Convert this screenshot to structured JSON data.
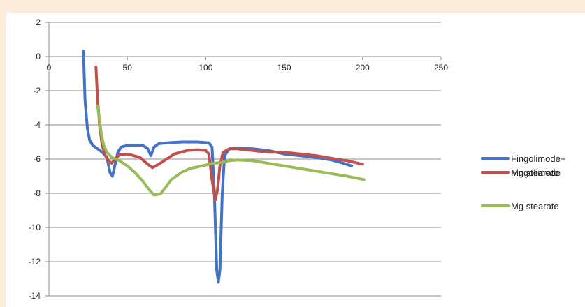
{
  "chart_data": {
    "type": "line",
    "title": "",
    "xlabel": "",
    "ylabel": "",
    "xlim": [
      0,
      250
    ],
    "ylim": [
      -14,
      2
    ],
    "x_ticks": [
      "0",
      "50",
      "100",
      "150",
      "200",
      "250"
    ],
    "y_ticks": [
      "2",
      "0",
      "-2",
      "-4",
      "-6",
      "-8",
      "-10",
      "-12",
      "-14"
    ],
    "grid": "horizontal",
    "legend_position": "right",
    "series": [
      {
        "name_lines": [
          "Fingolimode+",
          "Mg stearate"
        ],
        "color": "#4472c4",
        "points": [
          [
            22,
            0.3
          ],
          [
            23,
            -2.5
          ],
          [
            24.5,
            -4.2
          ],
          [
            26,
            -4.9
          ],
          [
            28,
            -5.2
          ],
          [
            31,
            -5.4
          ],
          [
            34,
            -5.6
          ],
          [
            37,
            -5.9
          ],
          [
            39,
            -6.8
          ],
          [
            40.5,
            -7.0
          ],
          [
            42,
            -6.4
          ],
          [
            44,
            -5.6
          ],
          [
            46,
            -5.3
          ],
          [
            50,
            -5.2
          ],
          [
            55,
            -5.2
          ],
          [
            60,
            -5.2
          ],
          [
            63,
            -5.4
          ],
          [
            65,
            -5.8
          ],
          [
            67,
            -5.3
          ],
          [
            70,
            -5.1
          ],
          [
            75,
            -5.05
          ],
          [
            85,
            -5.0
          ],
          [
            95,
            -5.0
          ],
          [
            102,
            -5.05
          ],
          [
            104,
            -5.3
          ],
          [
            105.5,
            -8.0
          ],
          [
            107,
            -12.5
          ],
          [
            108,
            -13.2
          ],
          [
            109,
            -12.5
          ],
          [
            110.5,
            -8.0
          ],
          [
            112,
            -5.8
          ],
          [
            115,
            -5.4
          ],
          [
            120,
            -5.35
          ],
          [
            130,
            -5.4
          ],
          [
            140,
            -5.5
          ],
          [
            150,
            -5.7
          ],
          [
            160,
            -5.8
          ],
          [
            170,
            -5.9
          ],
          [
            180,
            -6.05
          ],
          [
            186,
            -6.2
          ],
          [
            193,
            -6.4
          ]
        ]
      },
      {
        "name_lines": [
          "Fingolimode"
        ],
        "color": "#c0504d",
        "points": [
          [
            30,
            -0.6
          ],
          [
            31,
            -2.5
          ],
          [
            32.5,
            -4.2
          ],
          [
            34,
            -5.2
          ],
          [
            36,
            -5.8
          ],
          [
            38,
            -6.1
          ],
          [
            40,
            -6.25
          ],
          [
            42,
            -6.0
          ],
          [
            45,
            -5.75
          ],
          [
            50,
            -5.7
          ],
          [
            58,
            -5.9
          ],
          [
            63,
            -6.3
          ],
          [
            66,
            -6.5
          ],
          [
            70,
            -6.3
          ],
          [
            75,
            -6.0
          ],
          [
            80,
            -5.7
          ],
          [
            88,
            -5.5
          ],
          [
            95,
            -5.45
          ],
          [
            100,
            -5.5
          ],
          [
            102,
            -5.7
          ],
          [
            104,
            -7.2
          ],
          [
            106,
            -8.4
          ],
          [
            107.5,
            -7.8
          ],
          [
            109,
            -6.4
          ],
          [
            111,
            -5.6
          ],
          [
            115,
            -5.4
          ],
          [
            120,
            -5.4
          ],
          [
            130,
            -5.5
          ],
          [
            140,
            -5.6
          ],
          [
            150,
            -5.6
          ],
          [
            160,
            -5.7
          ],
          [
            170,
            -5.8
          ],
          [
            180,
            -5.95
          ],
          [
            190,
            -6.1
          ],
          [
            200,
            -6.3
          ]
        ]
      },
      {
        "name_lines": [
          "Mg stearate"
        ],
        "color": "#9bbb59",
        "points": [
          [
            31,
            -2.9
          ],
          [
            32,
            -3.5
          ],
          [
            33.5,
            -4.6
          ],
          [
            35,
            -5.2
          ],
          [
            37,
            -5.6
          ],
          [
            40,
            -5.9
          ],
          [
            45,
            -6.1
          ],
          [
            50,
            -6.4
          ],
          [
            55,
            -6.8
          ],
          [
            60,
            -7.3
          ],
          [
            64,
            -7.8
          ],
          [
            67,
            -8.1
          ],
          [
            71,
            -8.05
          ],
          [
            74,
            -7.7
          ],
          [
            78,
            -7.2
          ],
          [
            85,
            -6.75
          ],
          [
            90,
            -6.55
          ],
          [
            95,
            -6.45
          ],
          [
            100,
            -6.35
          ],
          [
            105,
            -6.25
          ],
          [
            110,
            -6.2
          ],
          [
            115,
            -6.1
          ],
          [
            120,
            -6.05
          ],
          [
            130,
            -6.1
          ],
          [
            140,
            -6.25
          ],
          [
            150,
            -6.4
          ],
          [
            160,
            -6.55
          ],
          [
            170,
            -6.7
          ],
          [
            180,
            -6.85
          ],
          [
            190,
            -7.0
          ],
          [
            201,
            -7.2
          ]
        ]
      }
    ]
  }
}
